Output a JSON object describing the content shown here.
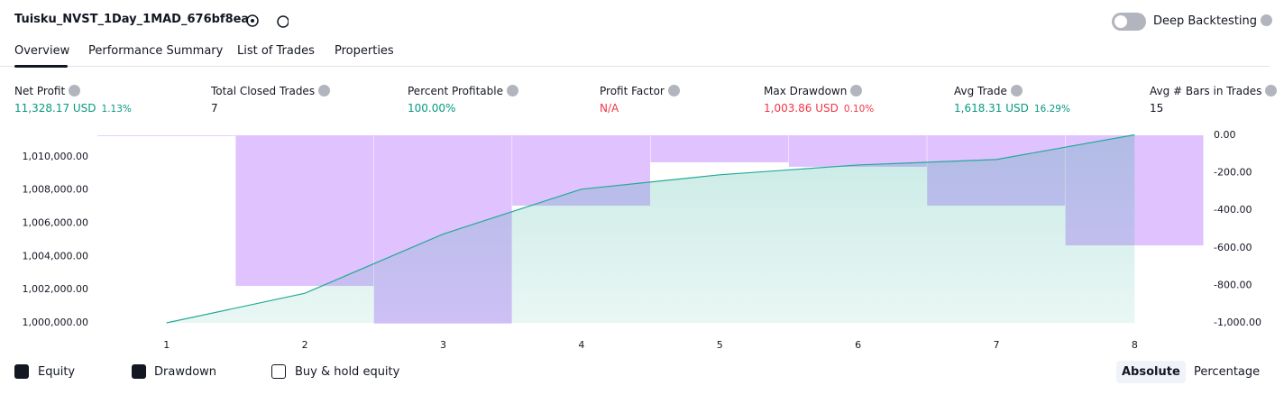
{
  "header": {
    "title": "Tuisku_NVST_1Day_1MAD_676bf8ea",
    "toggle_label": "Deep Backtesting"
  },
  "tabs": [
    "Overview",
    "Performance Summary",
    "List of Trades",
    "Properties"
  ],
  "metrics": [
    {
      "label": "Net Profit",
      "value": "11,328.17 USD",
      "percent": "1.13%"
    },
    {
      "label": "Total Closed Trades",
      "value": "7"
    },
    {
      "label": "Percent Profitable",
      "value": "100.00%"
    },
    {
      "label": "Profit Factor",
      "value": "N/A"
    },
    {
      "label": "Max Drawdown",
      "value": "1,003.86 USD",
      "percent": "0.10%"
    },
    {
      "label": "Avg Trade",
      "value": "1,618.31 USD",
      "percent": "16.29%"
    },
    {
      "label": "Avg # Bars in Trades",
      "value": "15"
    }
  ],
  "chart_data": {
    "type": "combo",
    "x": [
      1,
      2,
      3,
      4,
      5,
      6,
      7,
      8
    ],
    "xlim": [
      0.5,
      8.5
    ],
    "xticks": [
      1,
      2,
      3,
      4,
      5,
      6,
      7,
      8
    ],
    "ylim": [
      1000000,
      1011300
    ],
    "yticks": [
      {
        "value": 1000000,
        "label": "1,000,000.00"
      },
      {
        "value": 1002000,
        "label": "1,002,000.00"
      },
      {
        "value": 1004000,
        "label": "1,004,000.00"
      },
      {
        "value": 1006000,
        "label": "1,006,000.00"
      },
      {
        "value": 1008000,
        "label": "1,008,000.00"
      },
      {
        "value": 1010000,
        "label": "1,010,000.00"
      }
    ],
    "y2lim": [
      -1000,
      0
    ],
    "y2ticks": [
      {
        "value": 0,
        "label": "0.00"
      },
      {
        "value": -200,
        "label": "-200.00"
      },
      {
        "value": -400,
        "label": "-400.00"
      },
      {
        "value": -600,
        "label": "-600.00"
      },
      {
        "value": -800,
        "label": "-800.00"
      },
      {
        "value": -1000,
        "label": "-1,000.00"
      }
    ],
    "series": [
      {
        "name": "Equity",
        "type": "area",
        "color": "#22ab94",
        "values": [
          1000000,
          1001780,
          1005350,
          1008050,
          1008920,
          1009510,
          1009840,
          1011328.17
        ]
      },
      {
        "name": "Drawdown",
        "type": "bar",
        "axis": "y2",
        "color": "#cc99ff",
        "values": [
          0,
          -803,
          -1003.86,
          -375,
          -144,
          -168,
          -375,
          -587
        ]
      }
    ],
    "extra_legend": "Buy & hold equity"
  },
  "view_buttons": [
    "Absolute",
    "Percentage"
  ]
}
